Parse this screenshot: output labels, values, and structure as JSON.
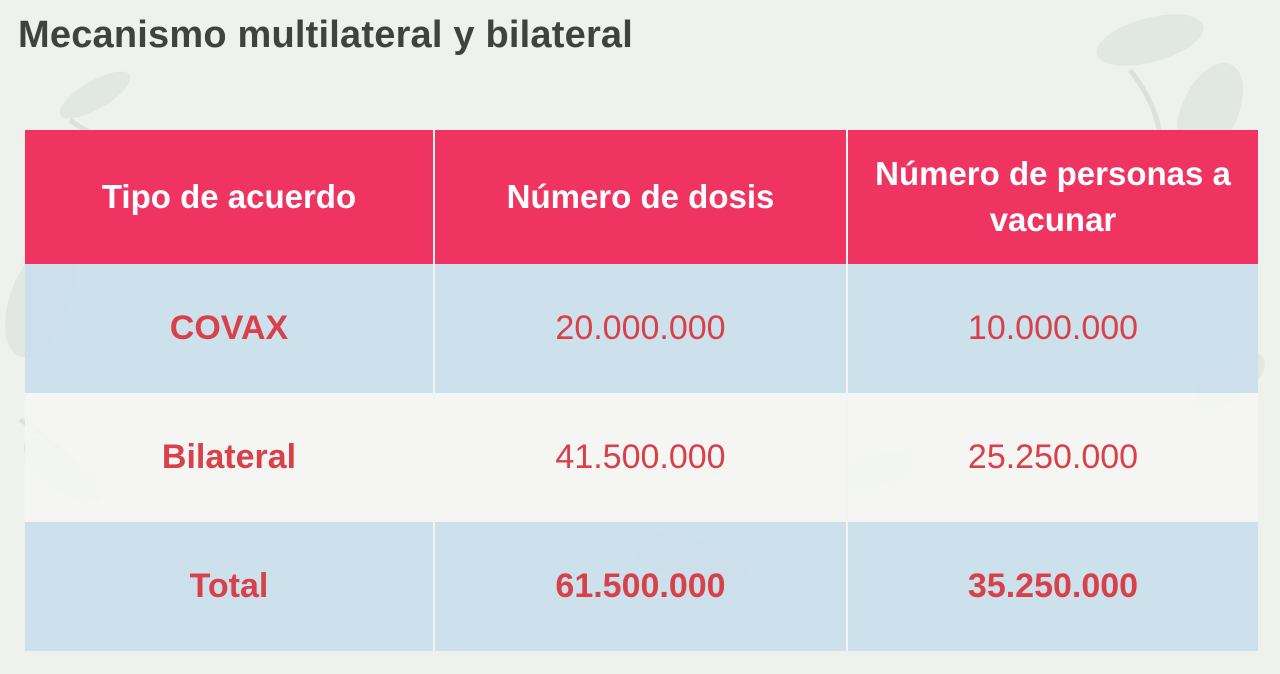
{
  "title": "Mecanismo multilateral y bilateral",
  "table": {
    "headers": [
      "Tipo de acuerdo",
      "Número de dosis",
      "Número de personas a vacunar"
    ],
    "rows": [
      [
        "COVAX",
        "20.000.000",
        "10.000.000"
      ],
      [
        "Bilateral",
        "41.500.000",
        "25.250.000"
      ],
      [
        "Total",
        "61.500.000",
        "35.250.000"
      ]
    ]
  },
  "colors": {
    "header_bg": "#f03462",
    "header_text": "#ffffff",
    "row_shaded": "#c8deec",
    "row_light": "#f6f7f3",
    "body_text": "#d8404a",
    "title_text": "#3f433f",
    "background": "#eef1ec"
  }
}
